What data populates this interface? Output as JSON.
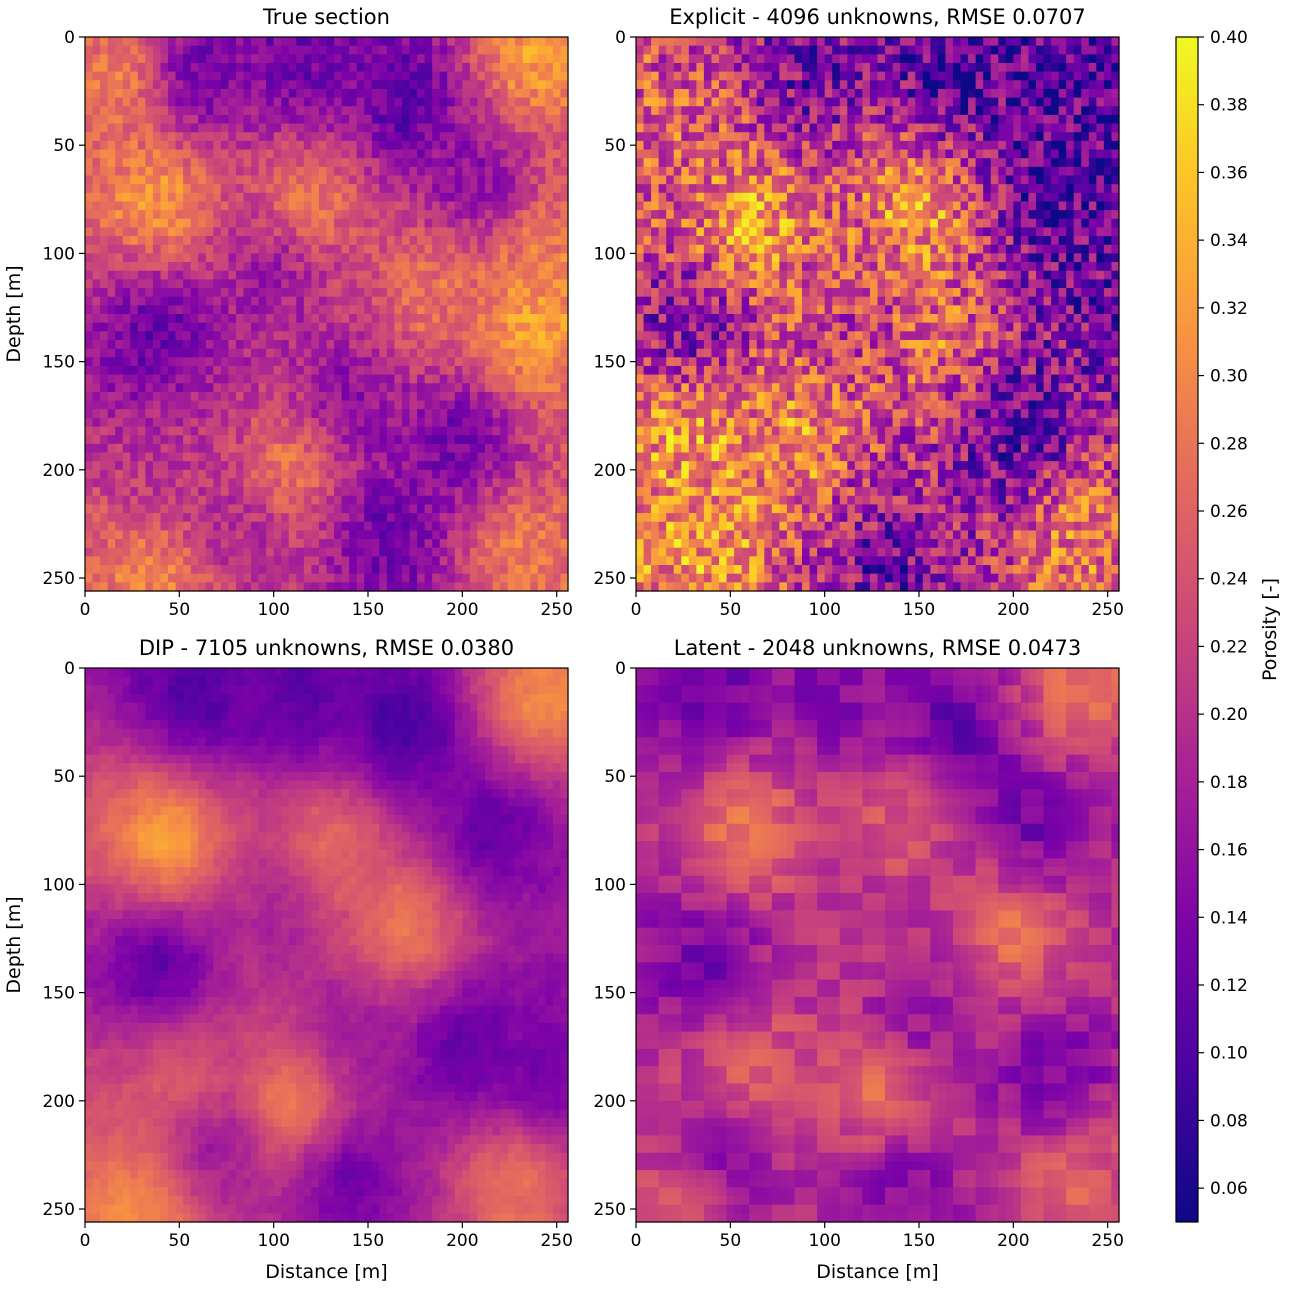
{
  "chart_data": [
    {
      "type": "heatmap",
      "title": "True section",
      "xlabel": "",
      "ylabel": "Depth [m]",
      "xlim": [
        0,
        256
      ],
      "ylim": [
        256,
        0
      ],
      "xticks": [
        "0",
        "50",
        "100",
        "150",
        "200",
        "250"
      ],
      "yticks": [
        "0",
        "50",
        "100",
        "150",
        "200",
        "250"
      ],
      "grid_shape": [
        64,
        64
      ],
      "texture": "smooth",
      "pattern_seed": 7,
      "features": [
        {
          "x": 55,
          "y": 18,
          "v": 0.08
        },
        {
          "x": 115,
          "y": 15,
          "v": 0.11
        },
        {
          "x": 170,
          "y": 30,
          "v": 0.08
        },
        {
          "x": 235,
          "y": 12,
          "v": 0.34
        },
        {
          "x": 25,
          "y": 20,
          "v": 0.32
        },
        {
          "x": 40,
          "y": 75,
          "v": 0.35
        },
        {
          "x": 120,
          "y": 75,
          "v": 0.32
        },
        {
          "x": 210,
          "y": 68,
          "v": 0.12
        },
        {
          "x": 240,
          "y": 100,
          "v": 0.3
        },
        {
          "x": 40,
          "y": 138,
          "v": 0.09
        },
        {
          "x": 100,
          "y": 108,
          "v": 0.15
        },
        {
          "x": 180,
          "y": 120,
          "v": 0.3
        },
        {
          "x": 235,
          "y": 135,
          "v": 0.36
        },
        {
          "x": 140,
          "y": 170,
          "v": 0.12
        },
        {
          "x": 200,
          "y": 185,
          "v": 0.1
        },
        {
          "x": 50,
          "y": 200,
          "v": 0.2
        },
        {
          "x": 110,
          "y": 198,
          "v": 0.33
        },
        {
          "x": 40,
          "y": 250,
          "v": 0.32
        },
        {
          "x": 80,
          "y": 228,
          "v": 0.17
        },
        {
          "x": 160,
          "y": 230,
          "v": 0.1
        },
        {
          "x": 230,
          "y": 235,
          "v": 0.3
        }
      ]
    },
    {
      "type": "heatmap",
      "title": "Explicit - 4096 unknowns, RMSE 0.0707",
      "xlabel": "",
      "ylabel": "",
      "xlim": [
        0,
        256
      ],
      "ylim": [
        256,
        0
      ],
      "xticks": [
        "0",
        "50",
        "100",
        "150",
        "200",
        "250"
      ],
      "yticks": [
        "0",
        "50",
        "100",
        "150",
        "200",
        "250"
      ],
      "grid_shape": [
        64,
        64
      ],
      "texture": "rough",
      "pattern_seed": 13,
      "features": [
        {
          "x": 90,
          "y": 20,
          "v": 0.12
        },
        {
          "x": 170,
          "y": 15,
          "v": 0.08
        },
        {
          "x": 230,
          "y": 25,
          "v": 0.1
        },
        {
          "x": 20,
          "y": 40,
          "v": 0.26
        },
        {
          "x": 150,
          "y": 80,
          "v": 0.36
        },
        {
          "x": 60,
          "y": 85,
          "v": 0.35
        },
        {
          "x": 220,
          "y": 70,
          "v": 0.08
        },
        {
          "x": 240,
          "y": 110,
          "v": 0.12
        },
        {
          "x": 30,
          "y": 135,
          "v": 0.1
        },
        {
          "x": 120,
          "y": 130,
          "v": 0.2
        },
        {
          "x": 160,
          "y": 140,
          "v": 0.3
        },
        {
          "x": 200,
          "y": 180,
          "v": 0.08
        },
        {
          "x": 90,
          "y": 190,
          "v": 0.34
        },
        {
          "x": 30,
          "y": 180,
          "v": 0.34
        },
        {
          "x": 130,
          "y": 240,
          "v": 0.09
        },
        {
          "x": 40,
          "y": 240,
          "v": 0.32
        },
        {
          "x": 235,
          "y": 230,
          "v": 0.3
        },
        {
          "x": 120,
          "y": 215,
          "v": 0.2
        }
      ]
    },
    {
      "type": "heatmap",
      "title": "DIP - 7105 unknowns, RMSE 0.0380",
      "xlabel": "Distance [m]",
      "ylabel": "Depth [m]",
      "xlim": [
        0,
        256
      ],
      "ylim": [
        256,
        0
      ],
      "xticks": [
        "0",
        "50",
        "100",
        "150",
        "200",
        "250"
      ],
      "yticks": [
        "0",
        "50",
        "100",
        "150",
        "200",
        "250"
      ],
      "grid_shape": [
        64,
        64
      ],
      "texture": "soft",
      "pattern_seed": 21,
      "features": [
        {
          "x": 60,
          "y": 15,
          "v": 0.09
        },
        {
          "x": 115,
          "y": 18,
          "v": 0.1
        },
        {
          "x": 170,
          "y": 30,
          "v": 0.07
        },
        {
          "x": 240,
          "y": 15,
          "v": 0.32
        },
        {
          "x": 45,
          "y": 80,
          "v": 0.36
        },
        {
          "x": 130,
          "y": 80,
          "v": 0.3
        },
        {
          "x": 215,
          "y": 75,
          "v": 0.1
        },
        {
          "x": 40,
          "y": 138,
          "v": 0.08
        },
        {
          "x": 100,
          "y": 112,
          "v": 0.17
        },
        {
          "x": 170,
          "y": 120,
          "v": 0.32
        },
        {
          "x": 200,
          "y": 175,
          "v": 0.09
        },
        {
          "x": 240,
          "y": 190,
          "v": 0.12
        },
        {
          "x": 140,
          "y": 170,
          "v": 0.15
        },
        {
          "x": 110,
          "y": 200,
          "v": 0.34
        },
        {
          "x": 50,
          "y": 190,
          "v": 0.27
        },
        {
          "x": 70,
          "y": 220,
          "v": 0.14
        },
        {
          "x": 140,
          "y": 235,
          "v": 0.1
        },
        {
          "x": 225,
          "y": 235,
          "v": 0.3
        },
        {
          "x": 30,
          "y": 250,
          "v": 0.32
        }
      ]
    },
    {
      "type": "heatmap",
      "title": "Latent - 2048 unknowns, RMSE 0.0473",
      "xlabel": "Distance [m]",
      "ylabel": "",
      "xlim": [
        0,
        256
      ],
      "ylim": [
        256,
        0
      ],
      "xticks": [
        "0",
        "50",
        "100",
        "150",
        "200",
        "250"
      ],
      "yticks": [
        "0",
        "50",
        "100",
        "150",
        "200",
        "250"
      ],
      "grid_shape": [
        64,
        64
      ],
      "texture": "blocky",
      "pattern_seed": 33,
      "features": [
        {
          "x": 40,
          "y": 15,
          "v": 0.12
        },
        {
          "x": 110,
          "y": 20,
          "v": 0.14
        },
        {
          "x": 170,
          "y": 30,
          "v": 0.1
        },
        {
          "x": 230,
          "y": 10,
          "v": 0.28
        },
        {
          "x": 60,
          "y": 75,
          "v": 0.3
        },
        {
          "x": 140,
          "y": 70,
          "v": 0.27
        },
        {
          "x": 210,
          "y": 75,
          "v": 0.11
        },
        {
          "x": 40,
          "y": 135,
          "v": 0.11
        },
        {
          "x": 120,
          "y": 118,
          "v": 0.2
        },
        {
          "x": 200,
          "y": 120,
          "v": 0.3
        },
        {
          "x": 150,
          "y": 160,
          "v": 0.14
        },
        {
          "x": 220,
          "y": 190,
          "v": 0.12
        },
        {
          "x": 60,
          "y": 185,
          "v": 0.28
        },
        {
          "x": 130,
          "y": 200,
          "v": 0.3
        },
        {
          "x": 50,
          "y": 228,
          "v": 0.13
        },
        {
          "x": 140,
          "y": 235,
          "v": 0.12
        },
        {
          "x": 230,
          "y": 235,
          "v": 0.27
        },
        {
          "x": 30,
          "y": 250,
          "v": 0.25
        }
      ]
    }
  ],
  "colorbar": {
    "label": "Porosity [-]",
    "colormap": "plasma",
    "vmin": 0.05,
    "vmax": 0.4,
    "ticks": [
      "0.06",
      "0.08",
      "0.10",
      "0.12",
      "0.14",
      "0.16",
      "0.18",
      "0.20",
      "0.22",
      "0.24",
      "0.26",
      "0.28",
      "0.30",
      "0.32",
      "0.34",
      "0.36",
      "0.38",
      "0.40"
    ]
  }
}
